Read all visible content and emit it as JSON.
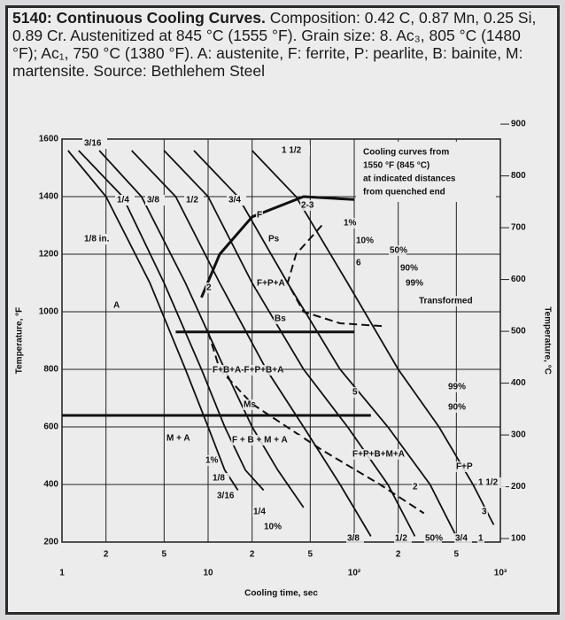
{
  "chart_data": {
    "type": "line",
    "title": "5140: Continuous Cooling Curves.",
    "subtitle": "Composition: 0.42 C, 0.87 Mn, 0.25 Si, 0.89 Cr. Austenitized at 845 °C (1555 °F). Grain size: 8. Ac₃, 805 °C (1480 °F); Ac₁, 750 °C (1380 °F). A: austenite, F: ferrite, P: pearlite, B: bainite, M: martensite. Source: Bethlehem Steel",
    "x_label": "Cooling time, sec",
    "y_label": "Temperature, °F",
    "y2_label": "Temperature, °C",
    "log_x": true,
    "grid": true,
    "xlim": [
      1,
      1000
    ],
    "xticks": [
      1,
      2,
      5,
      10,
      {
        "value": 20,
        "label": "2"
      },
      {
        "value": 50,
        "label": "5"
      },
      {
        "value": 100,
        "label": "10²"
      },
      {
        "value": 200,
        "label": "2"
      },
      {
        "value": 500,
        "label": "5"
      },
      {
        "value": 1000,
        "label": "10³"
      }
    ],
    "ylim": [
      200,
      1600
    ],
    "yticks": [
      200,
      400,
      600,
      800,
      1000,
      1200,
      1400,
      1600
    ],
    "y2lim": [
      93.3,
      871.1
    ],
    "y2ticks": [
      100,
      200,
      300,
      400,
      500,
      600,
      700,
      800,
      900
    ],
    "note": [
      "Cooling curves from",
      "1550 °F (845 °C)",
      "at indicated distances",
      "from quenched end"
    ],
    "series": [
      {
        "name": "1/8 in.",
        "color": "#111",
        "x": [
          1.1,
          2,
          4,
          7,
          10,
          13,
          16
        ],
        "values": [
          1560,
          1400,
          1100,
          800,
          600,
          450,
          380
        ]
      },
      {
        "name": "3/16",
        "color": "#111",
        "x": [
          1.3,
          2.6,
          5,
          9,
          13,
          18,
          24
        ],
        "values": [
          1560,
          1400,
          1100,
          800,
          600,
          450,
          380
        ]
      },
      {
        "name": "1/4",
        "color": "#111",
        "x": [
          1.8,
          3.5,
          7,
          13,
          20,
          30,
          45
        ],
        "values": [
          1560,
          1400,
          1100,
          800,
          600,
          450,
          320
        ]
      },
      {
        "name": "3/8",
        "color": "#111",
        "x": [
          3,
          6,
          12,
          25,
          45,
          80,
          130
        ],
        "values": [
          1560,
          1400,
          1100,
          800,
          600,
          400,
          220
        ]
      },
      {
        "name": "1/2",
        "color": "#111",
        "x": [
          5,
          10,
          20,
          45,
          90,
          170,
          260
        ],
        "values": [
          1560,
          1400,
          1100,
          800,
          600,
          400,
          220
        ]
      },
      {
        "name": "3/4",
        "color": "#111",
        "x": [
          8,
          16,
          35,
          80,
          170,
          330,
          500
        ],
        "values": [
          1560,
          1400,
          1100,
          800,
          600,
          400,
          220
        ]
      },
      {
        "name": "1 1/2",
        "color": "#111",
        "x": [
          20,
          40,
          90,
          200,
          380,
          650,
          900
        ],
        "values": [
          1560,
          1400,
          1100,
          800,
          600,
          400,
          260
        ]
      }
    ],
    "phase_boundaries": [
      {
        "style": "solid",
        "x": [
          9,
          12,
          20,
          45,
          100
        ],
        "values": [
          1050,
          1200,
          1330,
          1400,
          1390
        ]
      },
      {
        "style": "dashed",
        "x": [
          60,
          40,
          35,
          45,
          80,
          160
        ],
        "values": [
          1300,
          1200,
          1100,
          1000,
          960,
          950
        ]
      },
      {
        "style": "solid",
        "x": [
          6,
          100
        ],
        "values": [
          930,
          930
        ]
      },
      {
        "style": "solid",
        "x": [
          1,
          130
        ],
        "values": [
          640,
          640
        ]
      },
      {
        "style": "dashed",
        "x": [
          10,
          12,
          20,
          60,
          150,
          300
        ],
        "values": [
          930,
          800,
          680,
          520,
          400,
          300
        ]
      }
    ],
    "annotations": [
      "A",
      "M + A",
      "F+B+A-F+P+B+A",
      "F + B + M + A",
      "F+P+B+M+A",
      "F+P+A",
      "F+P",
      "F",
      "Ps",
      "Bs",
      "Ms",
      "Transformed",
      "1%",
      "10%",
      "50%",
      "90%",
      "99%",
      "99%",
      "90%",
      "1%",
      "10%",
      "2",
      "3",
      "5",
      "6",
      "2",
      "1/8",
      "3/16",
      "1/4",
      "3/8",
      "1/2",
      "50%",
      "3/4",
      "1",
      "1 1/2",
      "2-3"
    ]
  }
}
